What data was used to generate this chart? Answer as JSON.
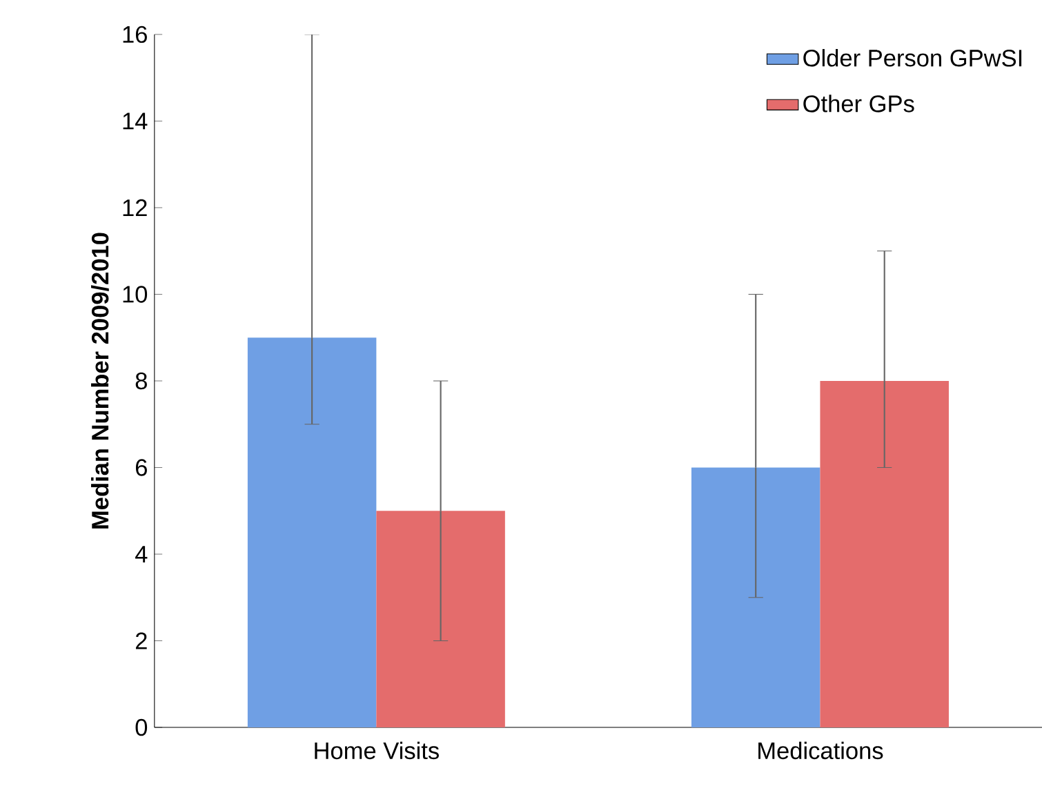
{
  "chart_data": {
    "type": "bar",
    "ylabel": "Median Number 2009/2010",
    "categories": [
      "Home Visits",
      "Medications"
    ],
    "series": [
      {
        "name": "Older Person GPwSI",
        "color": "#6f9fe4",
        "values": [
          9,
          6
        ],
        "errors": [
          [
            7,
            16
          ],
          [
            3,
            10
          ]
        ]
      },
      {
        "name": "Other GPs",
        "color": "#e46c6c",
        "values": [
          5,
          8
        ],
        "errors": [
          [
            2,
            8
          ],
          [
            6,
            11
          ]
        ]
      }
    ],
    "ylim": [
      0,
      16
    ],
    "yticks": [
      0,
      2,
      4,
      6,
      8,
      10,
      12,
      14,
      16
    ],
    "legend": "top right",
    "grid": false
  }
}
